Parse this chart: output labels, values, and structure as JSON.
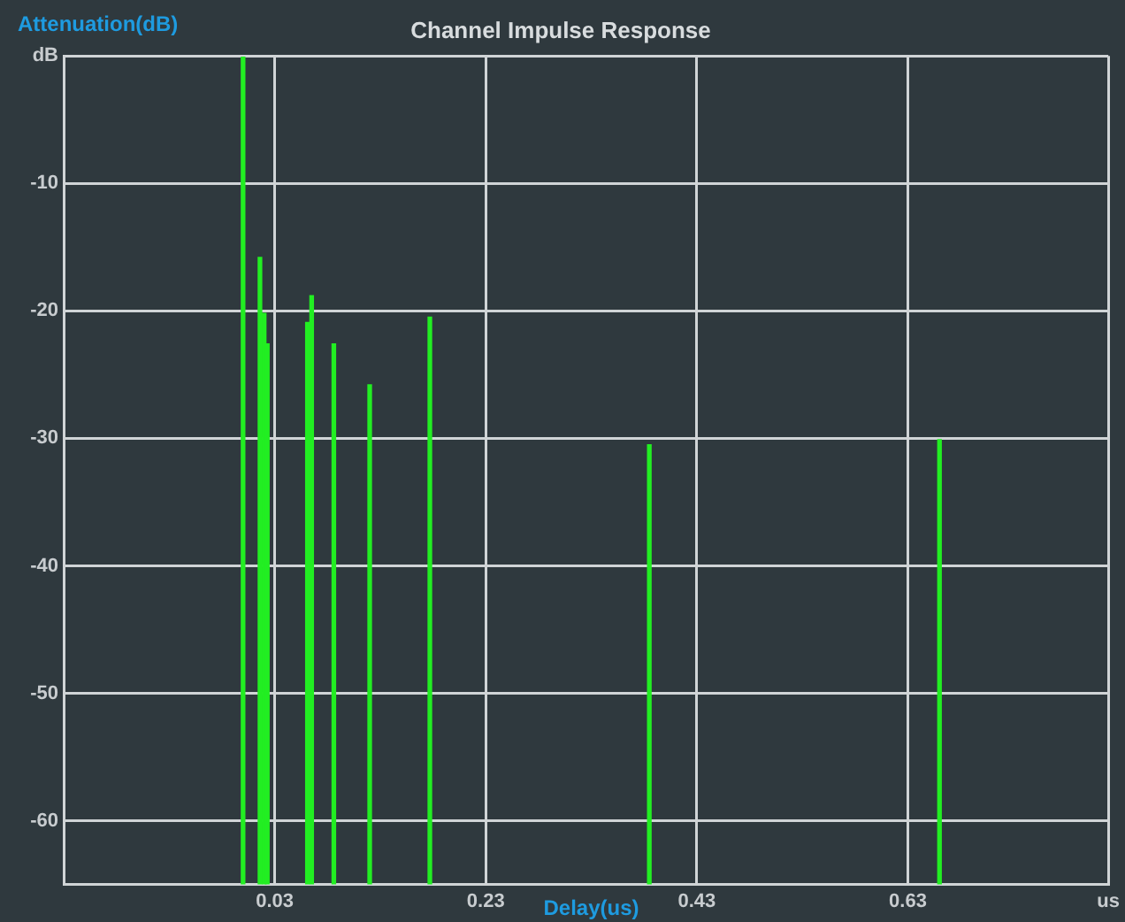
{
  "chart_data": {
    "type": "bar",
    "title": "Channel Impulse Response",
    "xlabel": "Delay(us)",
    "ylabel": "Attenuation(dB)",
    "x": [
      0.0,
      0.016,
      0.02,
      0.023,
      0.061,
      0.065,
      0.086,
      0.12,
      0.177,
      0.385,
      0.66
    ],
    "values": [
      65,
      49.2,
      44.8,
      42.4,
      44.1,
      46.2,
      42.4,
      39.2,
      44.5,
      34.5,
      34.9
    ],
    "base": [
      -65,
      -65,
      -65,
      -65,
      -65,
      -65,
      -65,
      -65,
      -65,
      -65,
      -65
    ],
    "color": "#22ee22",
    "xlim": [
      -0.17,
      0.82
    ],
    "xticks": [
      0.03,
      0.23,
      0.43,
      0.63,
      {
        "value": 0.82,
        "label": "us"
      }
    ],
    "ylim": [
      -65,
      0
    ],
    "yticks": [
      {
        "value": 0,
        "label": "dB"
      },
      -10,
      -20,
      -30,
      -40,
      -50,
      -60
    ],
    "grid": true,
    "legend": false
  }
}
